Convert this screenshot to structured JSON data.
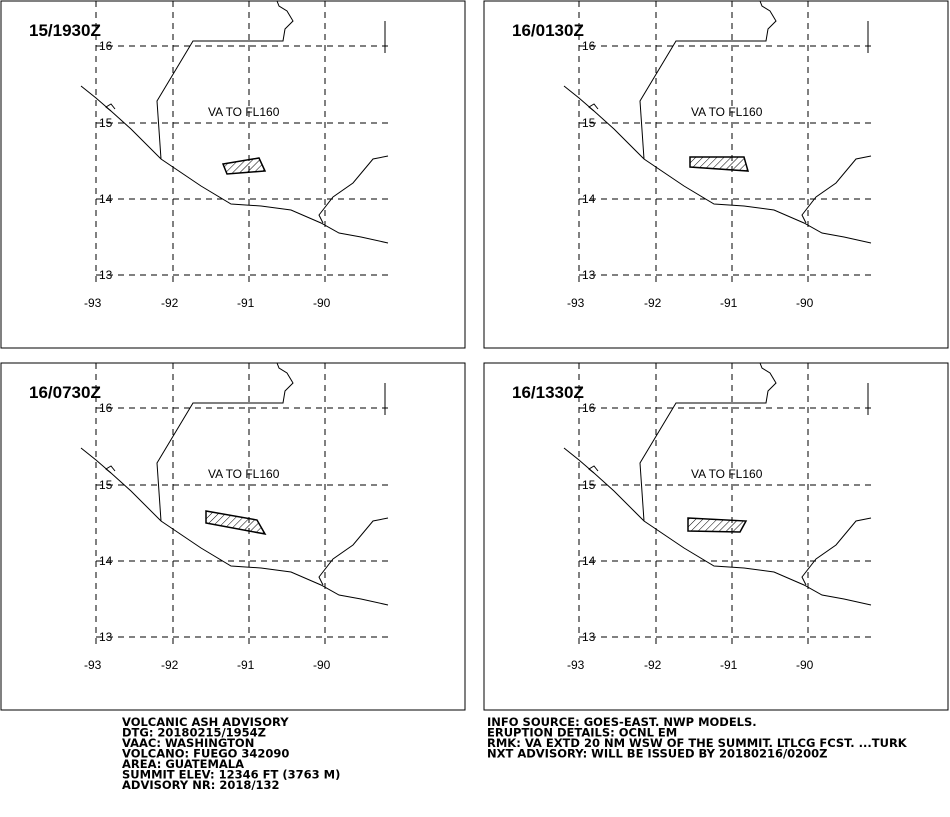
{
  "panels": [
    {
      "time": "15/1930Z",
      "label": "VA TO FL160"
    },
    {
      "time": "16/0130Z",
      "label": "VA TO FL160"
    },
    {
      "time": "16/0730Z",
      "label": "VA TO FL160"
    },
    {
      "time": "16/1330Z",
      "label": "VA TO FL160"
    }
  ],
  "lat_labels": [
    "16",
    "15",
    "14",
    "13"
  ],
  "lon_labels": [
    "-93",
    "-92",
    "-91",
    "-90"
  ],
  "info_left": [
    "VOLCANIC ASH ADVISORY",
    "DTG: 20180215/1954Z",
    "VAAC: WASHINGTON",
    "VOLCANO: FUEGO 342090",
    "AREA: GUATEMALA",
    "SUMMIT ELEV: 12346 FT (3763 M)",
    "ADVISORY NR: 2018/132"
  ],
  "info_right": [
    "INFO SOURCE: GOES-EAST. NWP MODELS.",
    "ERUPTION DETAILS: OCNL EM",
    "RMK: VA EXTD 20 NM WSW OF THE SUMMIT. LTLCG FCST. ...TURK",
    "NXT ADVISORY: WILL BE ISSUED BY 20180216/0200Z"
  ]
}
